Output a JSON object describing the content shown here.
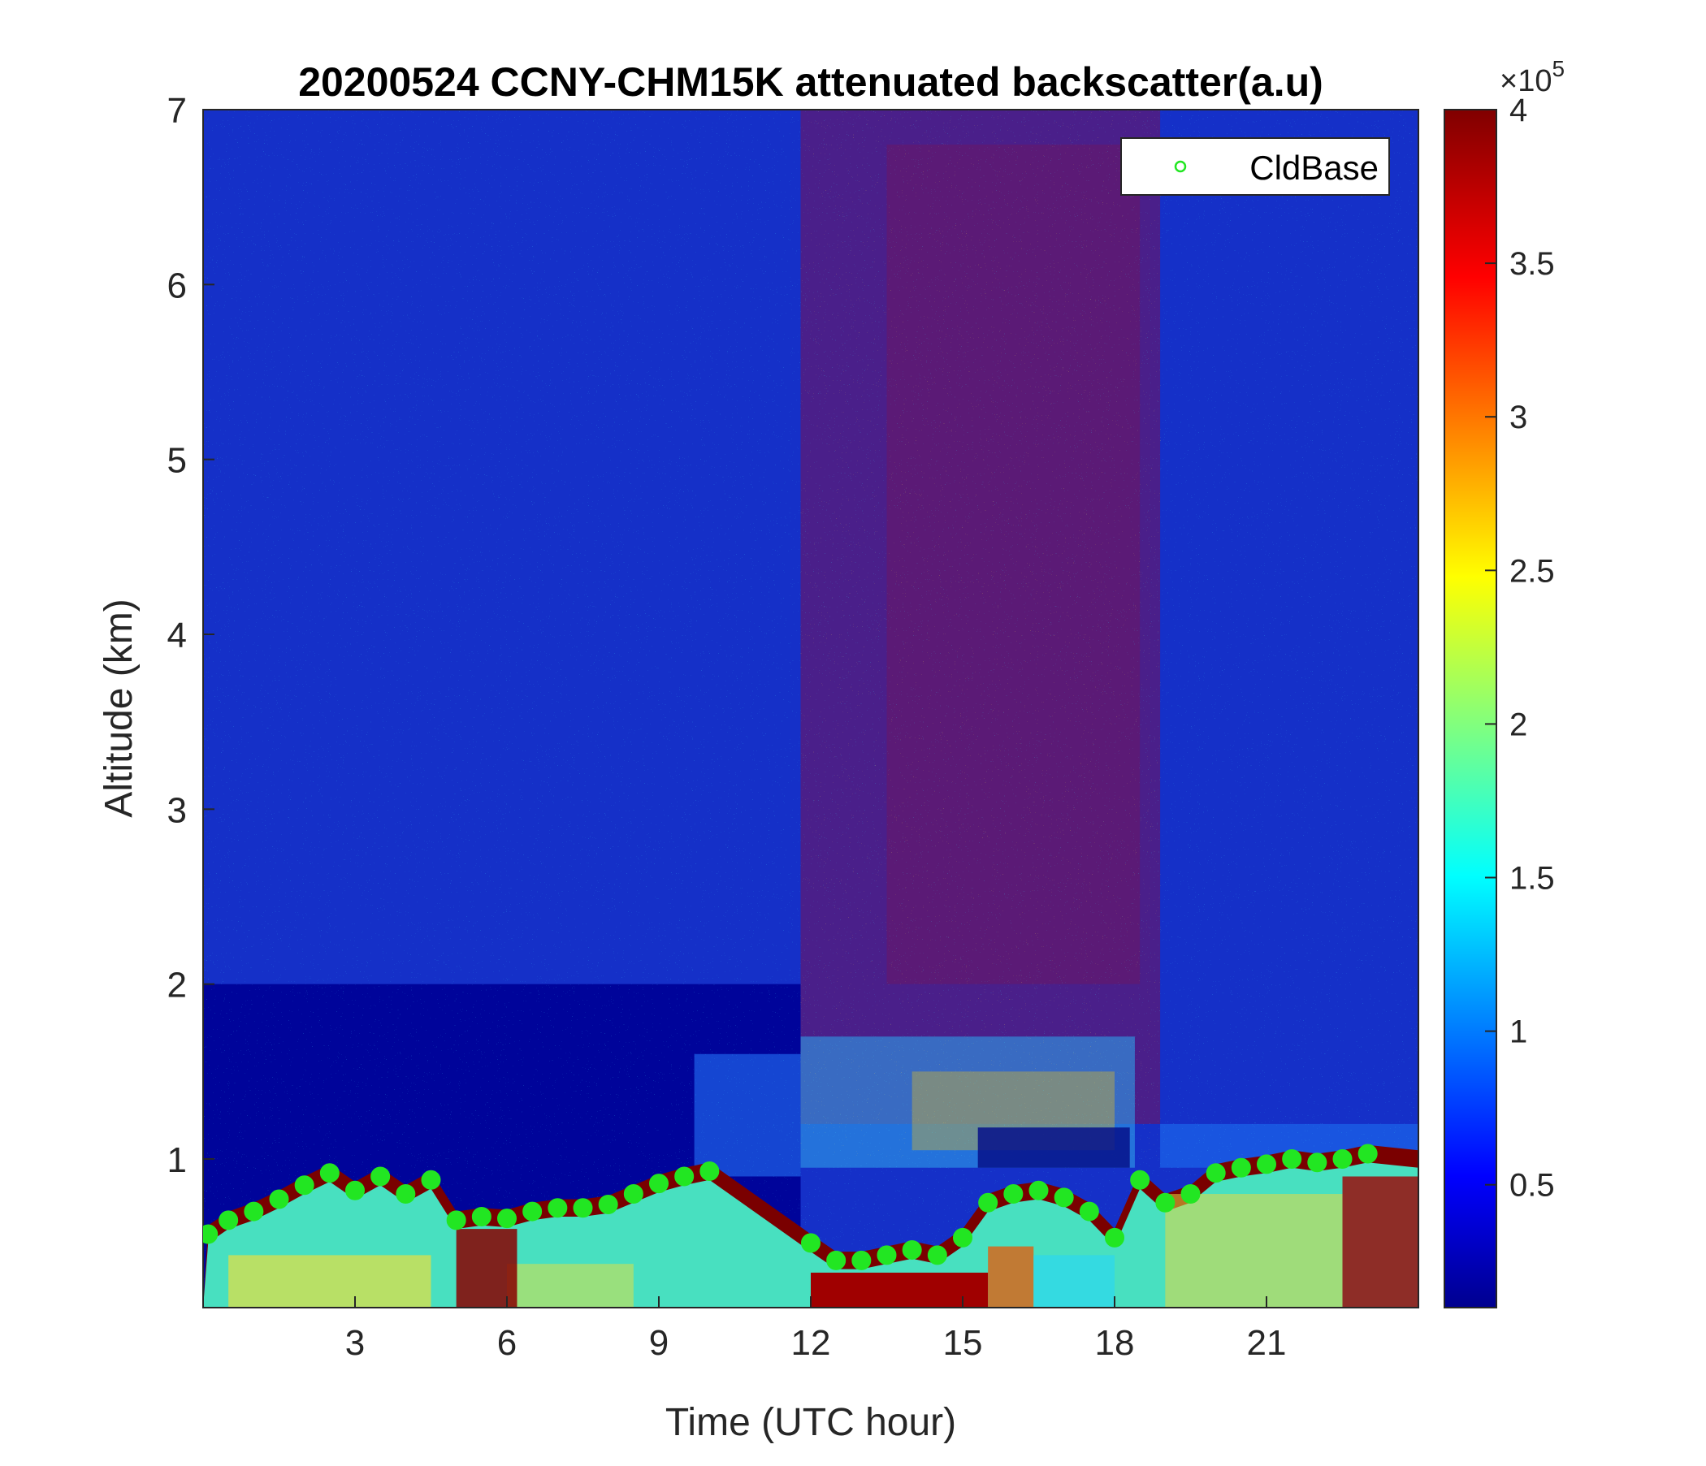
{
  "chart_data": {
    "type": "heatmap",
    "title": "20200524 CCNY-CHM15K attenuated backscatter(a.u)",
    "xlabel": "Time (UTC hour)",
    "ylabel": "Altitude (km)",
    "xlim": [
      0,
      24
    ],
    "ylim": [
      0.15,
      7
    ],
    "x_ticks": [
      3,
      6,
      9,
      12,
      15,
      18,
      21
    ],
    "x_tick_labels": [
      "3",
      "6",
      "9",
      "12",
      "15",
      "18",
      "21"
    ],
    "y_ticks": [
      1,
      2,
      3,
      4,
      5,
      6,
      7
    ],
    "y_tick_labels": [
      "1",
      "2",
      "3",
      "4",
      "5",
      "6",
      "7"
    ],
    "colorbar": {
      "colormap": "jet",
      "range": [
        0.1,
        4
      ],
      "exponent_label": "×10",
      "exponent_power": "5",
      "ticks": [
        0.5,
        1,
        1.5,
        2,
        2.5,
        3,
        3.5,
        4
      ],
      "tick_labels": [
        "0.5",
        "1",
        "1.5",
        "2",
        "2.5",
        "3",
        "3.5",
        "4"
      ]
    },
    "legend": {
      "placement": "top-right",
      "entries": [
        "CldBase"
      ]
    },
    "series": [
      {
        "name": "CldBase",
        "marker": "circle",
        "color": "#22e622",
        "x": [
          0.1,
          0.5,
          1.0,
          1.5,
          2.0,
          2.5,
          3.0,
          3.5,
          4.0,
          4.5,
          5.0,
          5.5,
          6.0,
          6.5,
          7.0,
          7.5,
          8.0,
          8.5,
          9.0,
          9.5,
          10.0,
          12.0,
          12.5,
          13.0,
          13.5,
          14.0,
          14.5,
          15.0,
          15.5,
          16.0,
          16.5,
          17.0,
          17.5,
          18.0,
          18.5,
          19.0,
          19.5,
          20.0,
          20.5,
          21.0,
          21.5,
          22.0,
          22.5,
          23.0
        ],
        "y": [
          0.57,
          0.65,
          0.7,
          0.77,
          0.85,
          0.92,
          0.82,
          0.9,
          0.8,
          0.88,
          0.65,
          0.67,
          0.66,
          0.7,
          0.72,
          0.72,
          0.74,
          0.8,
          0.86,
          0.9,
          0.93,
          0.52,
          0.42,
          0.42,
          0.45,
          0.48,
          0.45,
          0.55,
          0.75,
          0.8,
          0.82,
          0.78,
          0.7,
          0.55,
          0.88,
          0.75,
          0.8,
          0.92,
          0.95,
          0.97,
          1.0,
          0.98,
          1.0,
          1.03
        ]
      }
    ]
  }
}
